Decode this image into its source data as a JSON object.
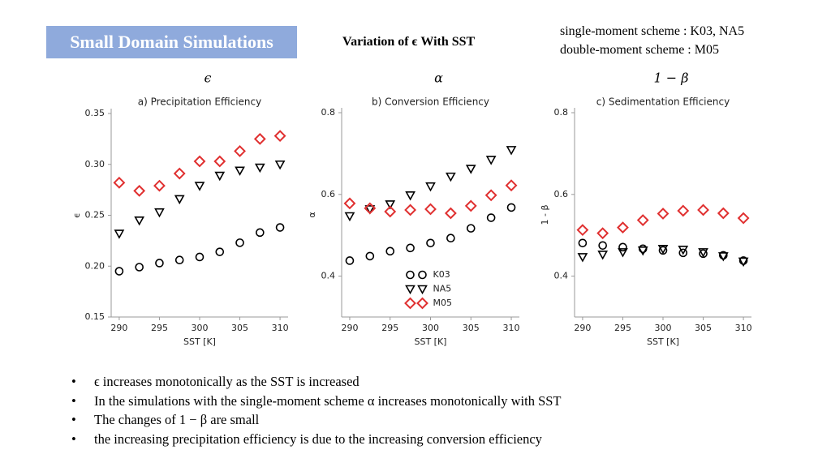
{
  "slide": {
    "badge": "Small Domain Simulations",
    "heading": "Variation of ϵ With SST",
    "notes": [
      "single-moment scheme : K03, NA5",
      "double-moment scheme : M05"
    ],
    "bullets": [
      "ϵ increases monotonically as the SST is increased",
      "In the simulations with the single-moment scheme α increases monotonically with SST",
      "The changes of 1 − β are small",
      "the increasing precipitation efficiency is due to the increasing conversion efficiency"
    ]
  },
  "chart_data": [
    {
      "type": "scatter",
      "symbol": "ϵ",
      "title": "a) Precipitation Efficiency",
      "xlabel": "SST [K]",
      "ylabel": "ϵ",
      "x": [
        290,
        292.5,
        295,
        297.5,
        300,
        302.5,
        305,
        307.5,
        310
      ],
      "xlim": [
        289,
        311
      ],
      "xticks": [
        290,
        295,
        300,
        305,
        310
      ],
      "ylim": [
        0.15,
        0.35
      ],
      "yticks": [
        {
          "value": 0.15,
          "label": "0.15"
        },
        {
          "value": 0.2,
          "label": "0.20"
        },
        0.25,
        {
          "value": 0.3,
          "label": "0.30"
        },
        0.35
      ],
      "series": [
        {
          "color": "#000000",
          "marker": "circle",
          "values": [
            0.195,
            0.199,
            0.203,
            0.206,
            0.209,
            0.214,
            0.223,
            0.233,
            0.238
          ]
        },
        {
          "color": "#000000",
          "marker": "triangle-down",
          "values": [
            0.232,
            0.245,
            0.253,
            0.266,
            0.279,
            0.289,
            0.294,
            0.297,
            0.3
          ]
        },
        {
          "color": "#e03030",
          "marker": "diamond",
          "values": [
            0.282,
            0.274,
            0.279,
            0.291,
            0.303,
            0.303,
            0.313,
            0.325,
            0.328
          ]
        }
      ]
    },
    {
      "type": "scatter",
      "symbol": "α",
      "title": "b) Conversion Efficiency",
      "xlabel": "SST [K]",
      "ylabel": "α",
      "x": [
        290,
        292.5,
        295,
        297.5,
        300,
        302.5,
        305,
        307.5,
        310
      ],
      "xlim": [
        289,
        311
      ],
      "xticks": [
        290,
        295,
        300,
        305,
        310
      ],
      "ylim": [
        0.3,
        0.8
      ],
      "yticks": [
        0.4,
        0.6,
        0.8
      ],
      "legend": "lower center",
      "series": [
        {
          "name": "K03",
          "color": "#000000",
          "marker": "circle",
          "values": [
            0.438,
            0.449,
            0.461,
            0.469,
            0.481,
            0.493,
            0.517,
            0.543,
            0.568
          ]
        },
        {
          "name": "NA5",
          "color": "#000000",
          "marker": "triangle-down",
          "values": [
            0.547,
            0.564,
            0.576,
            0.598,
            0.62,
            0.644,
            0.663,
            0.685,
            0.709
          ]
        },
        {
          "name": "M05",
          "color": "#e03030",
          "marker": "diamond",
          "values": [
            0.578,
            0.566,
            0.558,
            0.562,
            0.564,
            0.554,
            0.572,
            0.598,
            0.622
          ]
        }
      ]
    },
    {
      "type": "scatter",
      "symbol": "1 − β",
      "title": "c) Sedimentation Efficiency",
      "xlabel": "SST [K]",
      "ylabel": "1 - β",
      "x": [
        290,
        292.5,
        295,
        297.5,
        300,
        302.5,
        305,
        307.5,
        310
      ],
      "xlim": [
        289,
        311
      ],
      "xticks": [
        290,
        295,
        300,
        305,
        310
      ],
      "ylim": [
        0.3,
        0.8
      ],
      "yticks": [
        0.4,
        0.6,
        0.8
      ],
      "series": [
        {
          "color": "#000000",
          "marker": "circle",
          "values": [
            0.481,
            0.475,
            0.471,
            0.467,
            0.463,
            0.457,
            0.455,
            0.451,
            0.438
          ]
        },
        {
          "color": "#000000",
          "marker": "triangle-down",
          "values": [
            0.447,
            0.453,
            0.459,
            0.463,
            0.467,
            0.465,
            0.459,
            0.449,
            0.436
          ]
        },
        {
          "color": "#e03030",
          "marker": "diamond",
          "values": [
            0.513,
            0.505,
            0.519,
            0.537,
            0.553,
            0.56,
            0.562,
            0.554,
            0.542
          ]
        }
      ]
    }
  ]
}
